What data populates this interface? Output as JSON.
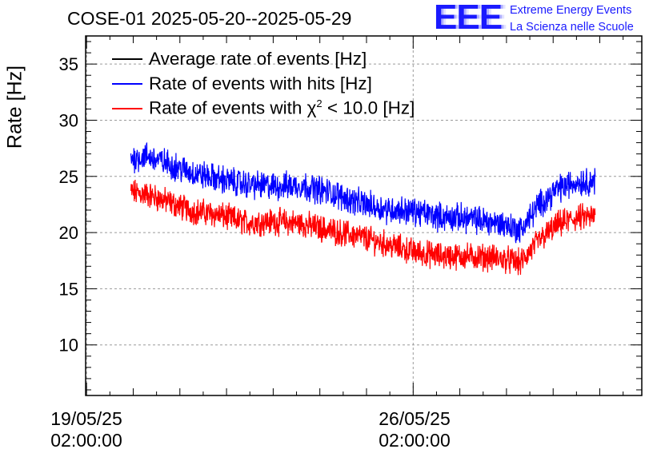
{
  "title": "COSE-01 2025-05-20--2025-05-29",
  "logo": {
    "letters": "EEE",
    "line1": "Extreme Energy Events",
    "line2": "La Scienza nelle Scuole",
    "color": "#1a1aff"
  },
  "legend": {
    "item0": "Average rate of events [Hz]",
    "item1": "Rate of events with hits [Hz]",
    "item2_pre": "Rate of events with ",
    "item2_chi": "χ",
    "item2_sup": "2",
    "item2_post": " < 10.0 [Hz]"
  },
  "axes": {
    "ylabel": "Rate [Hz]",
    "x_tick0_date": "19/05/25",
    "x_tick0_time": "02:00:00",
    "x_tick1_date": "26/05/25",
    "x_tick1_time": "02:00:00"
  },
  "chart_data": {
    "type": "line",
    "title": "COSE-01 2025-05-20--2025-05-29",
    "xlabel": "",
    "ylabel": "Rate [Hz]",
    "x_unit": "days since 19/05/25 02:00:00",
    "xlim": [
      -0.02,
      11.9
    ],
    "ylim": [
      5.5,
      37.5
    ],
    "y_ticks": [
      10,
      15,
      20,
      25,
      30,
      35
    ],
    "x_ticks": [
      "19/05/25 02:00:00",
      "26/05/25 02:00:00"
    ],
    "grid": true,
    "legend_position": "top-left",
    "noise_amplitude": {
      "Rate of events with hits [Hz]": 1.0,
      "Rate of events with χ2 < 10.0 [Hz]": 0.95
    },
    "series": [
      {
        "name": "Average rate of events [Hz]",
        "color": "#000000",
        "x": [],
        "y": []
      },
      {
        "name": "Rate of events with hits [Hz]",
        "color": "#0000ff",
        "x": [
          0.95,
          1.3,
          1.7,
          2.2,
          2.8,
          3.4,
          4.0,
          4.6,
          5.2,
          5.8,
          6.4,
          7.0,
          7.6,
          8.1,
          8.6,
          9.0,
          9.3,
          9.7,
          10.1,
          10.5,
          10.9
        ],
        "y": [
          26.6,
          26.8,
          26.2,
          25.4,
          24.8,
          24.3,
          24.1,
          24.2,
          23.6,
          22.7,
          22.1,
          21.9,
          21.4,
          21.3,
          21.0,
          20.7,
          20.2,
          22.5,
          23.9,
          24.5,
          24.6
        ]
      },
      {
        "name": "Rate of events with χ2 < 10.0 [Hz]",
        "color": "#ff0000",
        "x": [
          0.95,
          1.3,
          1.7,
          2.2,
          2.8,
          3.4,
          4.0,
          4.6,
          5.2,
          5.8,
          6.4,
          7.0,
          7.6,
          8.1,
          8.6,
          9.0,
          9.3,
          9.7,
          10.1,
          10.5,
          10.9
        ],
        "y": [
          23.6,
          23.4,
          22.8,
          22.0,
          21.6,
          20.9,
          21.0,
          20.8,
          20.2,
          19.7,
          19.0,
          18.3,
          17.9,
          17.9,
          17.8,
          17.6,
          17.3,
          19.3,
          20.7,
          21.3,
          21.4
        ]
      }
    ]
  }
}
